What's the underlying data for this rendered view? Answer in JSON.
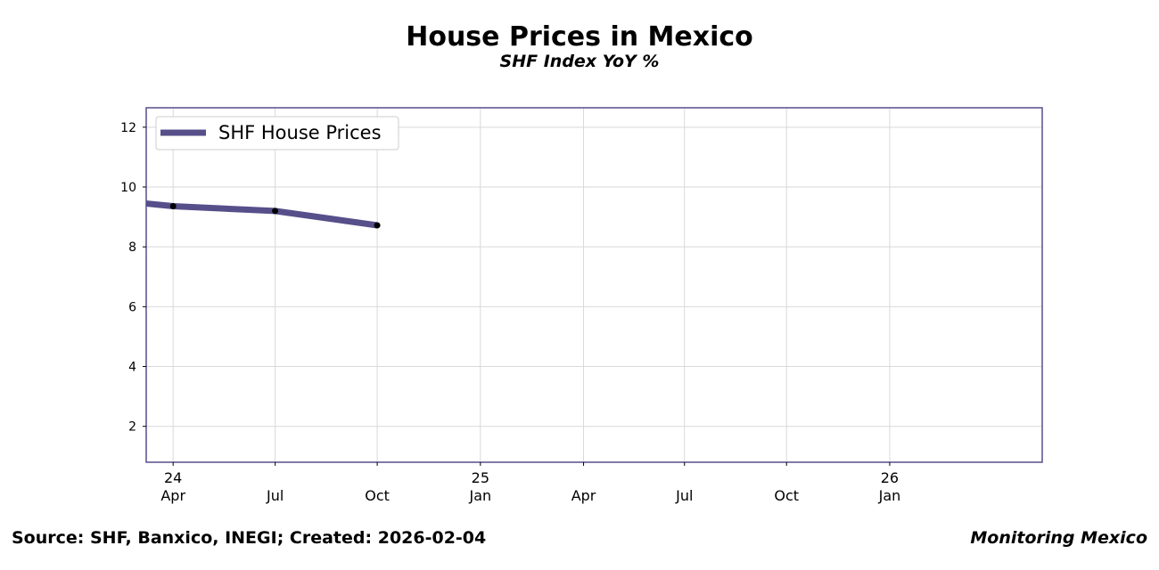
{
  "header": {
    "title": "House Prices in Mexico",
    "subtitle": "SHF Index YoY %"
  },
  "footer": {
    "source": "Source: SHF, Banxico, INEGI; Created: 2026-02-04",
    "brand": "Monitoring Mexico"
  },
  "colors": {
    "series": "#574f8a",
    "frame": "#574f8a",
    "grid": "#d9d9d9",
    "marker": "#000000"
  },
  "chart_data": {
    "type": "line",
    "title": "House Prices in Mexico",
    "subtitle": "SHF Index YoY %",
    "xlabel": "",
    "ylabel": "",
    "ylim": [
      0.8,
      12.65
    ],
    "xlim": [
      "2023-12-08",
      "2026-02-14"
    ],
    "yticks": [
      2,
      4,
      6,
      8,
      10,
      12
    ],
    "xticks": [
      {
        "date": "2024-01-01",
        "major": "24",
        "minor": "Apr"
      },
      {
        "date": "2024-04-01",
        "major": "",
        "minor": "Jul"
      },
      {
        "date": "2024-07-01",
        "major": "",
        "minor": "Oct"
      },
      {
        "date": "2024-10-01",
        "major": "25",
        "minor": "Jan"
      },
      {
        "date": "2025-01-01",
        "major": "",
        "minor": "Apr"
      },
      {
        "date": "2025-04-01",
        "major": "",
        "minor": "Jul"
      },
      {
        "date": "2025-07-01",
        "major": "",
        "minor": "Oct"
      },
      {
        "date": "2025-10-01",
        "major": "26",
        "minor": "Jan"
      }
    ],
    "grid": true,
    "legend_position": "top-left",
    "series": [
      {
        "name": "SHF House Prices",
        "x": [
          "2023-10-01",
          "2024-01-01",
          "2024-04-01",
          "2024-07-01"
        ],
        "y": [
          9.7,
          9.36,
          9.2,
          8.72
        ],
        "markers": [
          false,
          true,
          true,
          true
        ]
      }
    ]
  }
}
